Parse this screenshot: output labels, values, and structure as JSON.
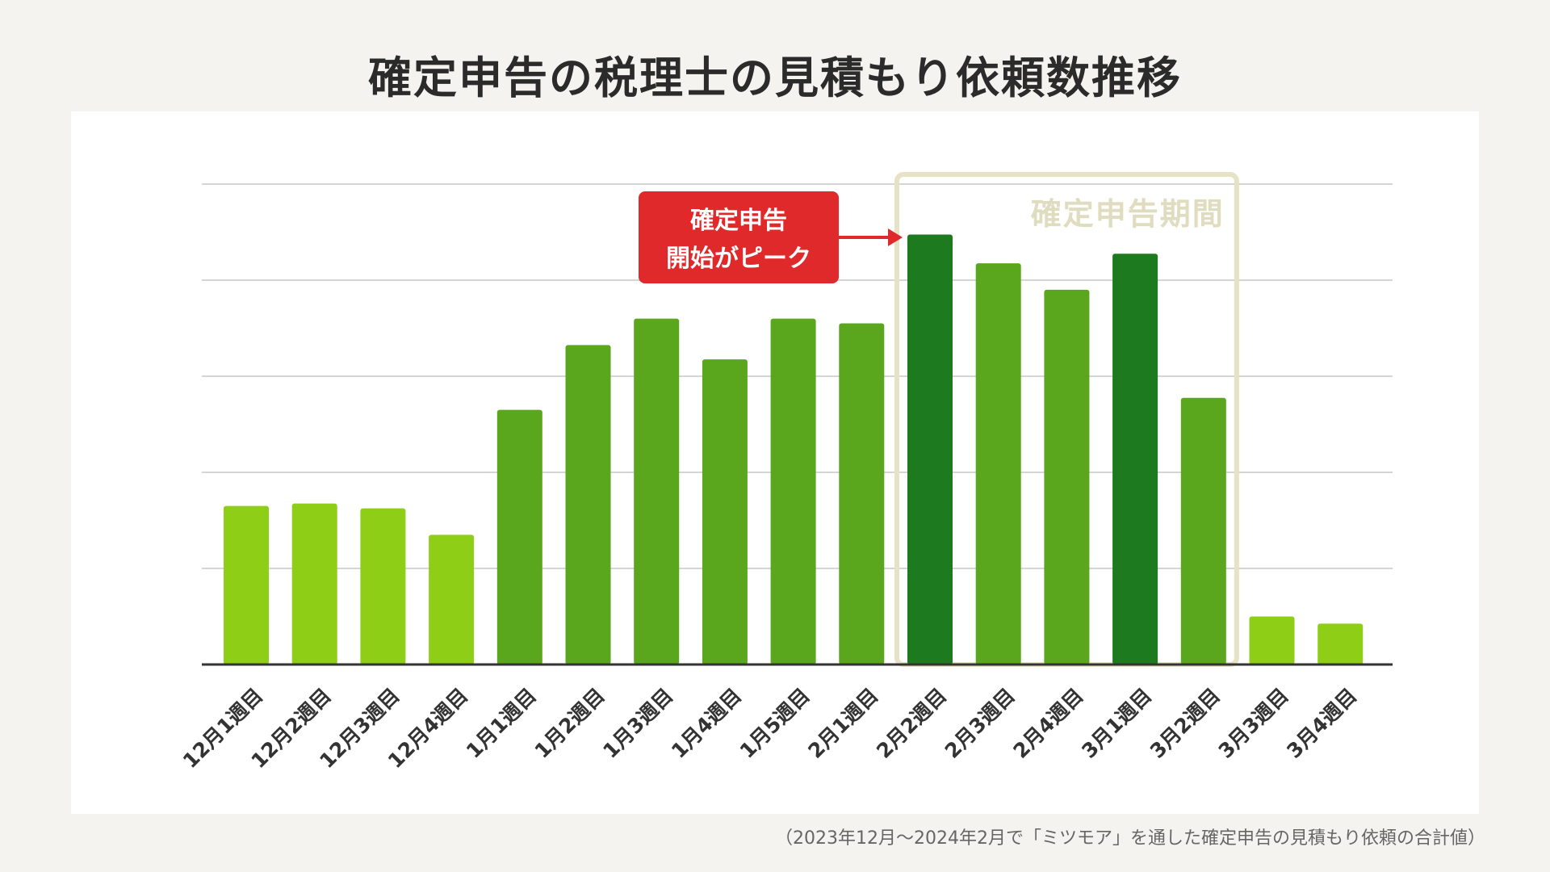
{
  "title": "確定申告の税理士の見積もり依頼数推移",
  "footnote": "（2023年12月～2024年2月で「ミツモア」を通した確定申告の見積もり依頼の合計値）",
  "colors": {
    "light_green": "#8fce17",
    "mid_green": "#5aa61c",
    "dark_green": "#1e7a1e",
    "callout_red": "#e0292b",
    "period_box": "#e6e2c6",
    "period_text": "#e0dcc0",
    "gridline": "#d5d5d5",
    "axis": "#333333"
  },
  "callout": {
    "line1": "確定申告",
    "line2": "開始がピーク"
  },
  "period_label": "確定申告期間",
  "chart_data": {
    "type": "bar",
    "title": "確定申告の税理士の見積もり依頼数推移",
    "xlabel": "",
    "ylabel": "",
    "ylim": [
      0,
      100
    ],
    "gridlines": [
      20,
      40,
      60,
      80,
      100
    ],
    "y_tick_labels_shown": false,
    "categories": [
      "12月1週目",
      "12月2週目",
      "12月3週目",
      "12月4週目",
      "1月1週目",
      "1月2週目",
      "1月3週目",
      "1月4週目",
      "1月5週目",
      "2月1週目",
      "2月2週目",
      "2月3週目",
      "2月4週目",
      "3月1週目",
      "3月2週目",
      "3月3週目",
      "3月4週目"
    ],
    "values": [
      33,
      33.5,
      32.5,
      27,
      53,
      66.5,
      72,
      63.5,
      72,
      71,
      89.5,
      83.5,
      78,
      85.5,
      55.5,
      10,
      8.5
    ],
    "bar_color_keys": [
      "light_green",
      "light_green",
      "light_green",
      "light_green",
      "mid_green",
      "mid_green",
      "mid_green",
      "mid_green",
      "mid_green",
      "mid_green",
      "dark_green",
      "mid_green",
      "mid_green",
      "dark_green",
      "mid_green",
      "light_green",
      "light_green"
    ],
    "highlight_period": {
      "label": "確定申告期間",
      "from_index": 10,
      "to_index": 14
    },
    "annotation": {
      "text": "確定申告 開始がピーク",
      "target_index": 10
    }
  }
}
